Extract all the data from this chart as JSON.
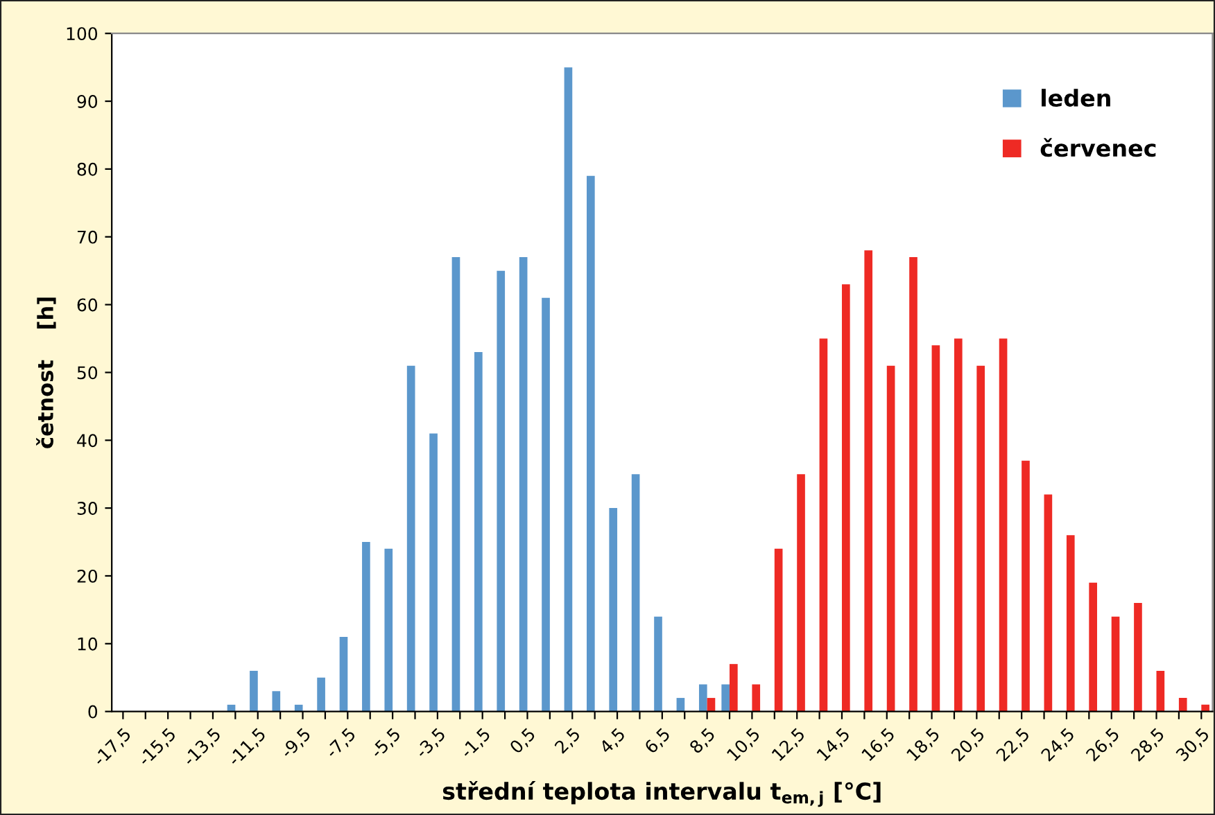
{
  "chart_data": {
    "type": "bar",
    "xlabel": "střední teplota intervalu t$_{em,j}$ [°C]",
    "ylabel": "četnost    [h]",
    "categories": [
      "-17,5",
      null,
      "-15,5",
      null,
      "-13,5",
      null,
      "-11,5",
      null,
      "-9,5",
      null,
      "-7,5",
      null,
      "-5,5",
      null,
      "-3,5",
      null,
      "-1,5",
      null,
      "0,5",
      null,
      "2,5",
      null,
      "4,5",
      null,
      "6,5",
      null,
      "8,5",
      null,
      "10,5",
      null,
      "12,5",
      null,
      "14,5",
      null,
      "16,5",
      null,
      "18,5",
      null,
      "20,5",
      null,
      "22,5",
      null,
      "24,5",
      null,
      "26,5",
      null,
      "28,5",
      null,
      "30,5"
    ],
    "series": [
      {
        "name": "leden",
        "color": "#5b97cc",
        "values": [
          0,
          0,
          0,
          0,
          0,
          1,
          6,
          3,
          1,
          5,
          11,
          25,
          24,
          51,
          41,
          67,
          53,
          65,
          67,
          61,
          95,
          79,
          30,
          35,
          14,
          2,
          4,
          4,
          0,
          0,
          0,
          0,
          0,
          0,
          0,
          0,
          0,
          0,
          0,
          0,
          0,
          0,
          0,
          0,
          0,
          0,
          0,
          0,
          0
        ]
      },
      {
        "name": "červenec",
        "color": "#ee2a24",
        "values": [
          0,
          0,
          0,
          0,
          0,
          0,
          0,
          0,
          0,
          0,
          0,
          0,
          0,
          0,
          0,
          0,
          0,
          0,
          0,
          0,
          0,
          0,
          0,
          0,
          0,
          0,
          2,
          7,
          4,
          24,
          35,
          55,
          63,
          68,
          51,
          67,
          54,
          55,
          51,
          55,
          37,
          32,
          26,
          19,
          14,
          16,
          6,
          2,
          1
        ]
      }
    ],
    "ylim": [
      0,
      100
    ],
    "yticks": [
      0,
      10,
      20,
      30,
      40,
      50,
      60,
      70,
      80,
      90,
      100
    ],
    "grid": false,
    "legend": "top right"
  }
}
